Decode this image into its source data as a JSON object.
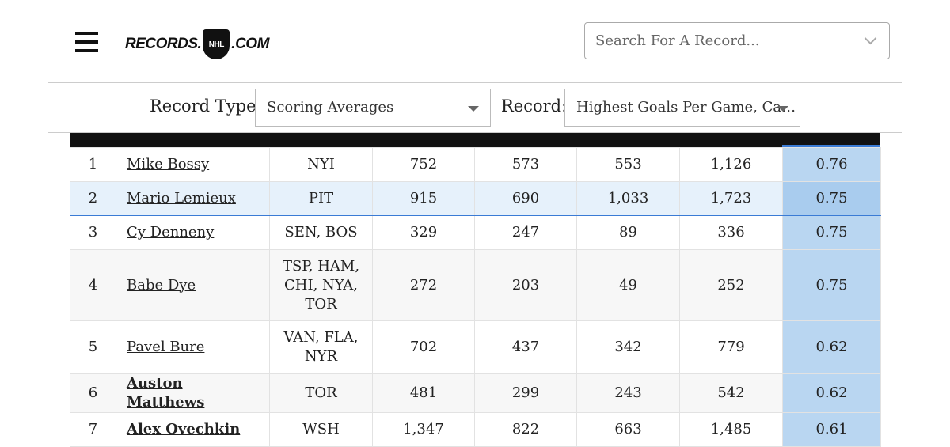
{
  "header": {
    "logo_left": "RECORDS.",
    "logo_shield": "NHL",
    "logo_right": ".COM",
    "search_placeholder": "Search For A Record..."
  },
  "filters": {
    "record_type_label": "Record Type:",
    "record_type_value": "Scoring Averages",
    "record_label": "Record:",
    "record_value": "Highest Goals Per Game, Ca…"
  },
  "table": {
    "rows": [
      [
        "1",
        "Mike Bossy",
        "NYI",
        "752",
        "573",
        "553",
        "1,126",
        "0.76"
      ],
      [
        "2",
        "Mario Lemieux",
        "PIT",
        "915",
        "690",
        "1,033",
        "1,723",
        "0.75"
      ],
      [
        "3",
        "Cy Denneny",
        "SEN, BOS",
        "329",
        "247",
        "89",
        "336",
        "0.75"
      ],
      [
        "4",
        "Babe Dye",
        "TSP, HAM, CHI, NYA, TOR",
        "272",
        "203",
        "49",
        "252",
        "0.75"
      ],
      [
        "5",
        "Pavel Bure",
        "VAN, FLA, NYR",
        "702",
        "437",
        "342",
        "779",
        "0.62"
      ],
      [
        "6",
        "Auston Matthews",
        "TOR",
        "481",
        "299",
        "243",
        "542",
        "0.62"
      ],
      [
        "7",
        "Alex Ovechkin",
        "WSH",
        "1,347",
        "822",
        "663",
        "1,485",
        "0.61"
      ]
    ]
  }
}
